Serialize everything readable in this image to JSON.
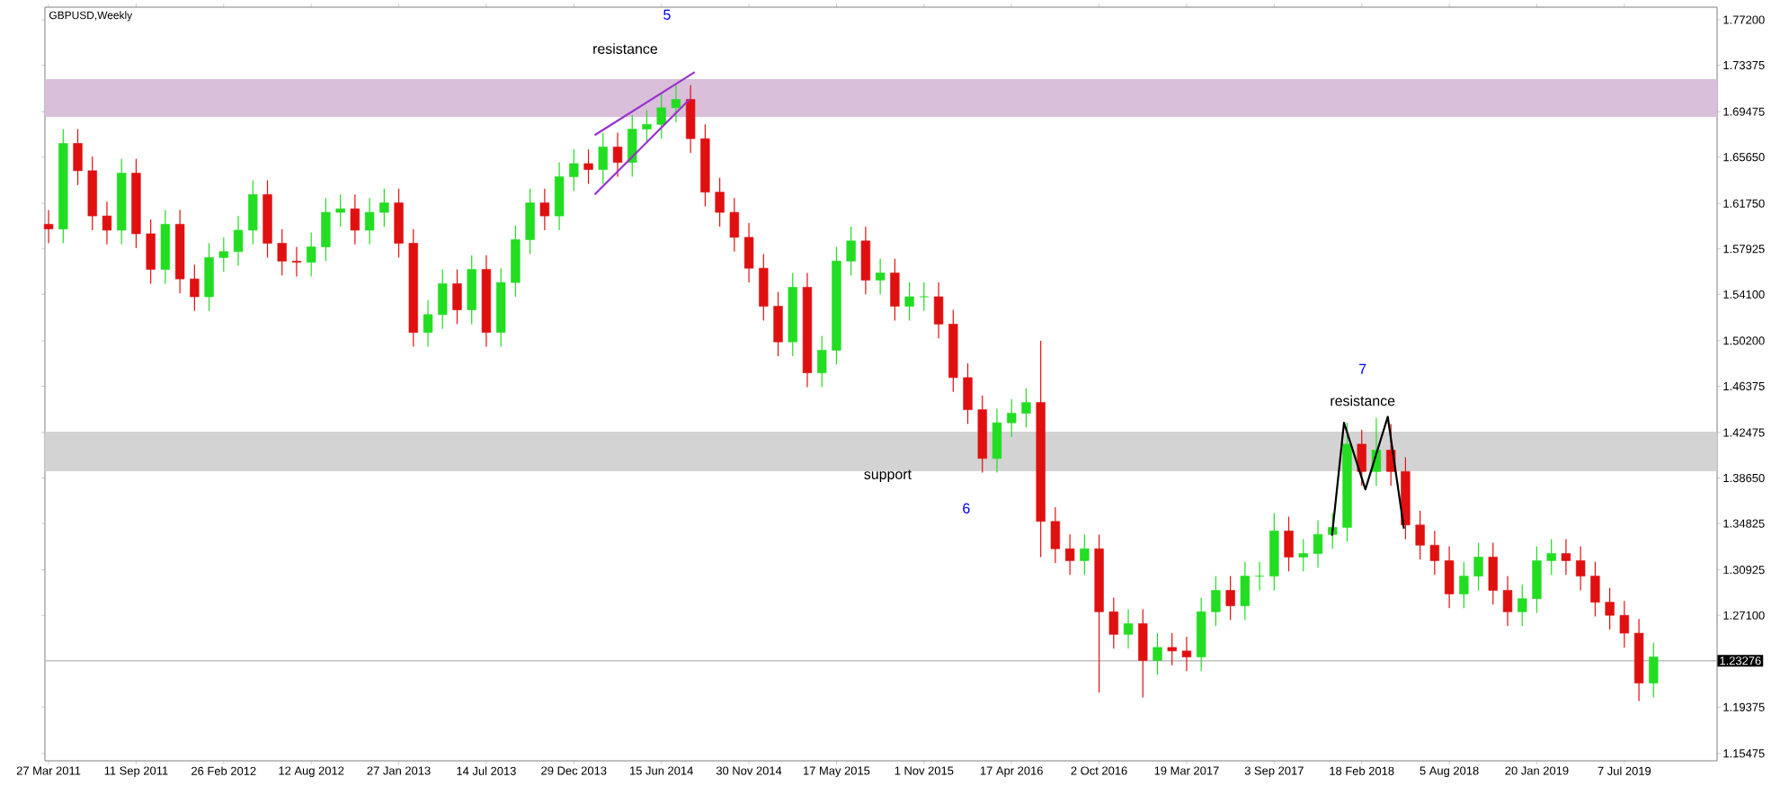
{
  "chart_data": {
    "type": "candlestick",
    "title": "GBPUSD,Weekly",
    "x": [
      "2011-03-27",
      "2011-04-24",
      "2011-05-22",
      "2011-06-19",
      "2011-07-17",
      "2011-08-14",
      "2011-09-11",
      "2011-10-09",
      "2011-11-06",
      "2011-12-04",
      "2012-01-01",
      "2012-01-29",
      "2012-02-26",
      "2012-03-25",
      "2012-04-22",
      "2012-05-20",
      "2012-06-17",
      "2012-07-15",
      "2012-08-12",
      "2012-09-09",
      "2012-10-07",
      "2012-11-04",
      "2012-12-02",
      "2012-12-30",
      "2013-01-27",
      "2013-02-24",
      "2013-03-24",
      "2013-04-21",
      "2013-05-19",
      "2013-06-16",
      "2013-07-14",
      "2013-08-11",
      "2013-09-08",
      "2013-10-06",
      "2013-11-03",
      "2013-12-01",
      "2013-12-29",
      "2014-01-26",
      "2014-02-23",
      "2014-03-23",
      "2014-04-20",
      "2014-05-18",
      "2014-06-15",
      "2014-07-13",
      "2014-08-10",
      "2014-09-07",
      "2014-10-05",
      "2014-11-02",
      "2014-11-30",
      "2014-12-28",
      "2015-01-25",
      "2015-02-22",
      "2015-03-22",
      "2015-04-19",
      "2015-05-17",
      "2015-06-14",
      "2015-07-12",
      "2015-08-09",
      "2015-09-06",
      "2015-10-04",
      "2015-11-01",
      "2015-11-29",
      "2015-12-27",
      "2016-01-24",
      "2016-02-21",
      "2016-03-20",
      "2016-04-17",
      "2016-05-15",
      "2016-06-12",
      "2016-07-10",
      "2016-08-07",
      "2016-09-04",
      "2016-10-02",
      "2016-10-30",
      "2016-11-27",
      "2016-12-25",
      "2017-01-22",
      "2017-02-19",
      "2017-03-19",
      "2017-04-16",
      "2017-05-14",
      "2017-06-11",
      "2017-07-09",
      "2017-08-06",
      "2017-09-03",
      "2017-10-01",
      "2017-10-29",
      "2017-11-26",
      "2017-12-24",
      "2018-01-21",
      "2018-02-18",
      "2018-03-18",
      "2018-04-15",
      "2018-05-13",
      "2018-06-10",
      "2018-07-08",
      "2018-08-05",
      "2018-09-02",
      "2018-09-30",
      "2018-10-28",
      "2018-11-25",
      "2018-12-23",
      "2019-01-20",
      "2019-02-17",
      "2019-03-17",
      "2019-04-14",
      "2019-05-12",
      "2019-06-09",
      "2019-07-07",
      "2019-08-04",
      "2019-09-01"
    ],
    "ohlc": [
      [
        1.6,
        1.612,
        1.584,
        1.596
      ],
      [
        1.596,
        1.68,
        1.584,
        1.668
      ],
      [
        1.668,
        1.68,
        1.633,
        1.645
      ],
      [
        1.645,
        1.657,
        1.595,
        1.607
      ],
      [
        1.607,
        1.619,
        1.583,
        1.595
      ],
      [
        1.595,
        1.655,
        1.583,
        1.643
      ],
      [
        1.643,
        1.655,
        1.58,
        1.592
      ],
      [
        1.592,
        1.604,
        1.55,
        1.562
      ],
      [
        1.562,
        1.612,
        1.55,
        1.6
      ],
      [
        1.6,
        1.612,
        1.542,
        1.554
      ],
      [
        1.554,
        1.566,
        1.527,
        1.539
      ],
      [
        1.539,
        1.584,
        1.527,
        1.572
      ],
      [
        1.572,
        1.589,
        1.56,
        1.577
      ],
      [
        1.577,
        1.607,
        1.565,
        1.595
      ],
      [
        1.595,
        1.637,
        1.583,
        1.625
      ],
      [
        1.625,
        1.637,
        1.572,
        1.584
      ],
      [
        1.584,
        1.596,
        1.557,
        1.569
      ],
      [
        1.569,
        1.581,
        1.556,
        1.568
      ],
      [
        1.568,
        1.593,
        1.556,
        1.581
      ],
      [
        1.581,
        1.622,
        1.569,
        1.61
      ],
      [
        1.61,
        1.625,
        1.598,
        1.613
      ],
      [
        1.613,
        1.625,
        1.583,
        1.595
      ],
      [
        1.595,
        1.622,
        1.583,
        1.61
      ],
      [
        1.61,
        1.63,
        1.598,
        1.618
      ],
      [
        1.618,
        1.63,
        1.572,
        1.584
      ],
      [
        1.584,
        1.596,
        1.497,
        1.509
      ],
      [
        1.509,
        1.536,
        1.497,
        1.524
      ],
      [
        1.524,
        1.562,
        1.512,
        1.55
      ],
      [
        1.55,
        1.562,
        1.516,
        1.528
      ],
      [
        1.528,
        1.574,
        1.516,
        1.562
      ],
      [
        1.562,
        1.574,
        1.497,
        1.509
      ],
      [
        1.509,
        1.563,
        1.497,
        1.551
      ],
      [
        1.551,
        1.599,
        1.539,
        1.587
      ],
      [
        1.587,
        1.63,
        1.575,
        1.618
      ],
      [
        1.618,
        1.63,
        1.595,
        1.607
      ],
      [
        1.607,
        1.652,
        1.595,
        1.64
      ],
      [
        1.64,
        1.663,
        1.628,
        1.651
      ],
      [
        1.651,
        1.663,
        1.634,
        1.646
      ],
      [
        1.646,
        1.677,
        1.634,
        1.665
      ],
      [
        1.665,
        1.677,
        1.64,
        1.652
      ],
      [
        1.652,
        1.692,
        1.64,
        1.68
      ],
      [
        1.68,
        1.696,
        1.668,
        1.684
      ],
      [
        1.684,
        1.71,
        1.672,
        1.698
      ],
      [
        1.698,
        1.717,
        1.686,
        1.705
      ],
      [
        1.705,
        1.717,
        1.66,
        1.672
      ],
      [
        1.672,
        1.684,
        1.615,
        1.627
      ],
      [
        1.627,
        1.639,
        1.598,
        1.61
      ],
      [
        1.61,
        1.622,
        1.577,
        1.589
      ],
      [
        1.589,
        1.601,
        1.551,
        1.563
      ],
      [
        1.563,
        1.575,
        1.519,
        1.531
      ],
      [
        1.531,
        1.543,
        1.489,
        1.501
      ],
      [
        1.501,
        1.559,
        1.489,
        1.547
      ],
      [
        1.547,
        1.559,
        1.463,
        1.475
      ],
      [
        1.475,
        1.506,
        1.463,
        1.494
      ],
      [
        1.494,
        1.581,
        1.482,
        1.569
      ],
      [
        1.569,
        1.598,
        1.557,
        1.586
      ],
      [
        1.586,
        1.598,
        1.541,
        1.553
      ],
      [
        1.553,
        1.571,
        1.541,
        1.559
      ],
      [
        1.559,
        1.571,
        1.519,
        1.531
      ],
      [
        1.531,
        1.551,
        1.519,
        1.539
      ],
      [
        1.539,
        1.551,
        1.527,
        1.539
      ],
      [
        1.539,
        1.551,
        1.504,
        1.516
      ],
      [
        1.516,
        1.528,
        1.459,
        1.471
      ],
      [
        1.471,
        1.483,
        1.432,
        1.444
      ],
      [
        1.444,
        1.456,
        1.391,
        1.403
      ],
      [
        1.403,
        1.445,
        1.391,
        1.433
      ],
      [
        1.433,
        1.453,
        1.421,
        1.441
      ],
      [
        1.441,
        1.462,
        1.429,
        1.45
      ],
      [
        1.45,
        1.502,
        1.32,
        1.35
      ],
      [
        1.35,
        1.362,
        1.315,
        1.327
      ],
      [
        1.327,
        1.339,
        1.305,
        1.317
      ],
      [
        1.317,
        1.339,
        1.305,
        1.327
      ],
      [
        1.327,
        1.339,
        1.206,
        1.274
      ],
      [
        1.274,
        1.286,
        1.243,
        1.255
      ],
      [
        1.255,
        1.276,
        1.243,
        1.264
      ],
      [
        1.264,
        1.276,
        1.202,
        1.233
      ],
      [
        1.233,
        1.256,
        1.221,
        1.244
      ],
      [
        1.244,
        1.256,
        1.229,
        1.241
      ],
      [
        1.241,
        1.253,
        1.224,
        1.236
      ],
      [
        1.236,
        1.286,
        1.224,
        1.274
      ],
      [
        1.274,
        1.304,
        1.262,
        1.292
      ],
      [
        1.292,
        1.304,
        1.267,
        1.279
      ],
      [
        1.279,
        1.316,
        1.267,
        1.304
      ],
      [
        1.304,
        1.316,
        1.292,
        1.304
      ],
      [
        1.304,
        1.357,
        1.292,
        1.342
      ],
      [
        1.342,
        1.354,
        1.308,
        1.32
      ],
      [
        1.32,
        1.335,
        1.308,
        1.323
      ],
      [
        1.323,
        1.351,
        1.311,
        1.339
      ],
      [
        1.339,
        1.357,
        1.327,
        1.345
      ],
      [
        1.345,
        1.433,
        1.333,
        1.415
      ],
      [
        1.415,
        1.427,
        1.38,
        1.392
      ],
      [
        1.392,
        1.437,
        1.38,
        1.41
      ],
      [
        1.41,
        1.432,
        1.38,
        1.392
      ],
      [
        1.392,
        1.404,
        1.335,
        1.347
      ],
      [
        1.347,
        1.359,
        1.318,
        1.33
      ],
      [
        1.33,
        1.342,
        1.305,
        1.317
      ],
      [
        1.317,
        1.329,
        1.277,
        1.289
      ],
      [
        1.289,
        1.316,
        1.277,
        1.304
      ],
      [
        1.304,
        1.332,
        1.292,
        1.32
      ],
      [
        1.32,
        1.332,
        1.28,
        1.292
      ],
      [
        1.292,
        1.304,
        1.262,
        1.274
      ],
      [
        1.274,
        1.297,
        1.262,
        1.285
      ],
      [
        1.285,
        1.329,
        1.273,
        1.317
      ],
      [
        1.317,
        1.335,
        1.305,
        1.323
      ],
      [
        1.323,
        1.335,
        1.305,
        1.317
      ],
      [
        1.317,
        1.329,
        1.292,
        1.304
      ],
      [
        1.304,
        1.316,
        1.27,
        1.282
      ],
      [
        1.282,
        1.294,
        1.259,
        1.271
      ],
      [
        1.271,
        1.283,
        1.244,
        1.256
      ],
      [
        1.256,
        1.268,
        1.199,
        1.214
      ],
      [
        1.214,
        1.248,
        1.202,
        1.236
      ]
    ],
    "colors": [
      "#e01010",
      "#22dd22",
      "#e01010",
      "#e01010",
      "#e01010",
      "#22dd22",
      "#e01010",
      "#e01010",
      "#22dd22",
      "#e01010",
      "#e01010",
      "#22dd22",
      "#22dd22",
      "#22dd22",
      "#22dd22",
      "#e01010",
      "#e01010",
      "#e01010",
      "#22dd22",
      "#22dd22",
      "#22dd22",
      "#e01010",
      "#22dd22",
      "#22dd22",
      "#e01010",
      "#e01010",
      "#22dd22",
      "#22dd22",
      "#e01010",
      "#22dd22",
      "#e01010",
      "#22dd22",
      "#22dd22",
      "#22dd22",
      "#e01010",
      "#22dd22",
      "#22dd22",
      "#e01010",
      "#22dd22",
      "#e01010",
      "#22dd22",
      "#22dd22",
      "#22dd22",
      "#22dd22",
      "#e01010",
      "#e01010",
      "#e01010",
      "#e01010",
      "#e01010",
      "#e01010",
      "#e01010",
      "#22dd22",
      "#e01010",
      "#22dd22",
      "#22dd22",
      "#22dd22",
      "#e01010",
      "#22dd22",
      "#e01010",
      "#22dd22",
      "#22dd22",
      "#e01010",
      "#e01010",
      "#e01010",
      "#e01010",
      "#22dd22",
      "#22dd22",
      "#22dd22",
      "#e01010",
      "#e01010",
      "#e01010",
      "#22dd22",
      "#e01010",
      "#e01010",
      "#22dd22",
      "#e01010",
      "#22dd22",
      "#e01010",
      "#e01010",
      "#22dd22",
      "#22dd22",
      "#e01010",
      "#22dd22",
      "#22dd22",
      "#22dd22",
      "#e01010",
      "#22dd22",
      "#22dd22",
      "#22dd22",
      "#22dd22",
      "#e01010",
      "#22dd22",
      "#e01010",
      "#e01010",
      "#e01010",
      "#e01010",
      "#e01010",
      "#22dd22",
      "#22dd22",
      "#e01010",
      "#e01010",
      "#22dd22",
      "#22dd22",
      "#22dd22",
      "#e01010",
      "#e01010",
      "#e01010",
      "#e01010",
      "#e01010",
      "#e01010",
      "#22dd22"
    ],
    "series": [
      {
        "type": "line",
        "color": "#9932cc",
        "line_style": "solid",
        "x": [
          "2014-02-07",
          "2014-08-18"
        ],
        "values": [
          1.675,
          1.728
        ]
      },
      {
        "type": "line",
        "color": "#9932cc",
        "line_style": "solid",
        "x": [
          "2014-02-07",
          "2014-08-08"
        ],
        "values": [
          1.625,
          1.705
        ]
      },
      {
        "type": "line",
        "color": "#000000",
        "line_style": "solid",
        "x": [
          "2017-12-23",
          "2018-01-15",
          "2018-02-25",
          "2018-04-09",
          "2018-05-10"
        ],
        "values": [
          1.338,
          1.433,
          1.377,
          1.438,
          1.344
        ]
      }
    ],
    "xlim": [
      "2011-03-20",
      "2020-01-01"
    ],
    "xticks": [
      {
        "value": "2011-03-27",
        "label": "27 Mar 2011"
      },
      {
        "value": "2011-09-11",
        "label": "11 Sep 2011"
      },
      {
        "value": "2012-02-26",
        "label": "26 Feb 2012"
      },
      {
        "value": "2012-08-12",
        "label": "12 Aug 2012"
      },
      {
        "value": "2013-01-27",
        "label": "27 Jan 2013"
      },
      {
        "value": "2013-07-14",
        "label": "14 Jul 2013"
      },
      {
        "value": "2013-12-29",
        "label": "29 Dec 2013"
      },
      {
        "value": "2014-06-15",
        "label": "15 Jun 2014"
      },
      {
        "value": "2014-11-30",
        "label": "30 Nov 2014"
      },
      {
        "value": "2015-05-17",
        "label": "17 May 2015"
      },
      {
        "value": "2015-11-01",
        "label": "1 Nov 2015"
      },
      {
        "value": "2016-04-17",
        "label": "17 Apr 2016"
      },
      {
        "value": "2016-10-02",
        "label": "2 Oct 2016"
      },
      {
        "value": "2017-03-19",
        "label": "19 Mar 2017"
      },
      {
        "value": "2017-09-03",
        "label": "3 Sep 2017"
      },
      {
        "value": "2018-02-18",
        "label": "18 Feb 2018"
      },
      {
        "value": "2018-08-05",
        "label": "5 Aug 2018"
      },
      {
        "value": "2019-01-20",
        "label": "20 Jan 2019"
      },
      {
        "value": "2019-07-07",
        "label": "7 Jul 2019"
      }
    ],
    "ylim": [
      1.1486,
      1.7826
    ],
    "yticks": [
      {
        "value": 1.772,
        "label": "1.77200"
      },
      {
        "value": 1.73375,
        "label": "1.73375"
      },
      {
        "value": 1.69475,
        "label": "1.69475"
      },
      {
        "value": 1.6565,
        "label": "1.65650"
      },
      {
        "value": 1.6175,
        "label": "1.61750"
      },
      {
        "value": 1.57925,
        "label": "1.57925"
      },
      {
        "value": 1.541,
        "label": "1.54100"
      },
      {
        "value": 1.502,
        "label": "1.50200"
      },
      {
        "value": 1.46375,
        "label": "1.46375"
      },
      {
        "value": 1.42475,
        "label": "1.42475"
      },
      {
        "value": 1.3865,
        "label": "1.38650"
      },
      {
        "value": 1.34825,
        "label": "1.34825"
      },
      {
        "value": 1.30925,
        "label": "1.30925"
      },
      {
        "value": 1.271,
        "label": "1.27100"
      },
      {
        "value": 1.19375,
        "label": "1.19375"
      },
      {
        "value": 1.15475,
        "label": "1.15475"
      }
    ],
    "ref_lines": [
      {
        "axis": "y",
        "value": 1.23276,
        "label": "1.23276",
        "color": "#c0c0c0"
      }
    ],
    "bands": [
      {
        "axis": "y",
        "from": 1.6903,
        "to": 1.7221,
        "color": "#d9bfd9"
      },
      {
        "axis": "y",
        "from": 1.3922,
        "to": 1.4255,
        "color": "#d3d3d3"
      }
    ],
    "annotations": [
      "5",
      "resistance",
      "support",
      "6",
      "7",
      "resistance"
    ]
  }
}
